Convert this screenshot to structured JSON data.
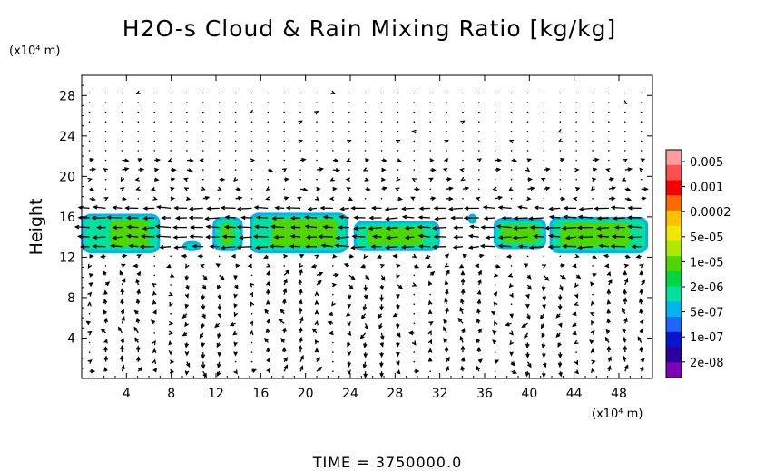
{
  "chart_data": {
    "type": "heatmap",
    "title": "H2O-s Cloud & Rain Mixing Ratio [kg/kg]",
    "ylabel": "Height",
    "xlabel": "",
    "x_unit_label": "(x10⁴ m)",
    "y_unit_label": "(x10⁴ m)",
    "footer": "TIME = 3750000.0",
    "xlim": [
      0,
      51
    ],
    "ylim": [
      0,
      30
    ],
    "x_ticks": [
      "4",
      "8",
      "12",
      "16",
      "20",
      "24",
      "28",
      "32",
      "36",
      "40",
      "44",
      "48"
    ],
    "x_tick_values": [
      4,
      8,
      12,
      16,
      20,
      24,
      28,
      32,
      36,
      40,
      44,
      48
    ],
    "y_ticks": [
      "4",
      "8",
      "12",
      "16",
      "20",
      "24",
      "28"
    ],
    "y_tick_values": [
      4,
      8,
      12,
      16,
      20,
      24,
      28
    ],
    "colorbar": {
      "labels": [
        "0.005",
        "0.001",
        "0.0002",
        "5e-05",
        "1e-05",
        "2e-06",
        "5e-07",
        "1e-07",
        "2e-08"
      ],
      "colors": [
        "#ff9c9c",
        "#ff4f4f",
        "#f50000",
        "#ff6a00",
        "#ffc000",
        "#f0e800",
        "#b0e800",
        "#4ed600",
        "#00d640",
        "#00e0a0",
        "#00b4f0",
        "#1e64ff",
        "#0a14d0",
        "#2a00a0",
        "#8000b8"
      ]
    },
    "cloud_cells": [
      {
        "x": [
          0.0,
          7.0
        ],
        "y": [
          12.4,
          16.3
        ],
        "core": [
          2.5,
          6.0
        ]
      },
      {
        "x": [
          9.0,
          10.7
        ],
        "y": [
          12.6,
          13.6
        ],
        "core": null
      },
      {
        "x": [
          11.7,
          14.4
        ],
        "y": [
          12.6,
          16.0
        ],
        "core": [
          12.5,
          13.5
        ]
      },
      {
        "x": [
          15.0,
          23.8
        ],
        "y": [
          12.4,
          16.4
        ],
        "core": [
          17.0,
          22.8
        ]
      },
      {
        "x": [
          24.3,
          32.0
        ],
        "y": [
          12.6,
          15.6
        ],
        "core": [
          25.5,
          30.5
        ]
      },
      {
        "x": [
          34.5,
          35.3
        ],
        "y": [
          15.3,
          16.3
        ],
        "core": null
      },
      {
        "x": [
          36.8,
          41.5
        ],
        "y": [
          12.8,
          15.9
        ],
        "core": [
          37.5,
          40.8
        ]
      },
      {
        "x": [
          41.8,
          50.6
        ],
        "y": [
          12.4,
          16.0
        ],
        "core": [
          42.8,
          49.0
        ]
      }
    ]
  }
}
